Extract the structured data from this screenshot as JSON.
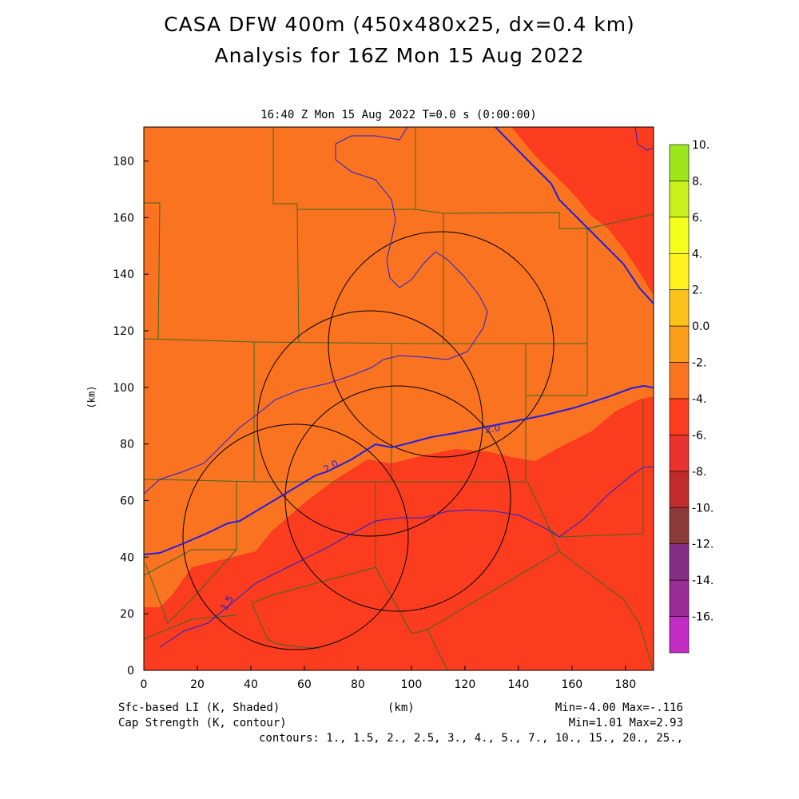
{
  "title_line1": "CASA DFW 400m (450x480x25, dx=0.4 km)",
  "title_line2": "Analysis for 16Z Mon 15 Aug 2022",
  "subtitle": "16:40 Z Mon 15 Aug 2022    T=0.0 s (0:00:00)",
  "axes": {
    "x_label": "(km)",
    "y_label": "(km)",
    "x_ticks": [
      "0",
      "20",
      "40",
      "60",
      "80",
      "100",
      "120",
      "140",
      "160",
      "180"
    ],
    "y_ticks": [
      "0",
      "20",
      "40",
      "60",
      "80",
      "100",
      "120",
      "140",
      "160",
      "180"
    ]
  },
  "colorbar": {
    "labels": [
      "10.",
      "8.",
      "6.",
      "4.",
      "2.",
      "0.0",
      "-2.",
      "-4.",
      "-6.",
      "-8.",
      "-10.",
      "-12.",
      "-14.",
      "-16."
    ],
    "colors": [
      "#9ee61c",
      "#c8f01c",
      "#f4ff1c",
      "#fff21c",
      "#fbc21c",
      "#fb9e1c",
      "#fa7320",
      "#fb3c1e",
      "#e9322e",
      "#c02c2c",
      "#8c3a3a",
      "#842f85",
      "#9a2c98",
      "#c02cc4",
      "#d83ae0"
    ]
  },
  "contour_labels": [
    "2.0",
    "2.0",
    "1.5"
  ],
  "footer": {
    "shaded_var": "Sfc-based LI (K, Shaded)",
    "contour_var": "Cap Strength (K, contour)",
    "x_units": "(km)",
    "shaded_range": "Min=-4.00 Max=-.116",
    "contour_range": "Min=1.01 Max=2.93",
    "contours": "contours: 1., 1.5, 2., 2.5, 3., 4., 5., 7., 10., 15., 20., 25.,"
  },
  "map_colors": {
    "orange": "#fa7320",
    "red": "#fb3c1e",
    "county_lines": "#3a6a22",
    "contour_line": "#2020e0",
    "radar_rings": "#000000"
  }
}
